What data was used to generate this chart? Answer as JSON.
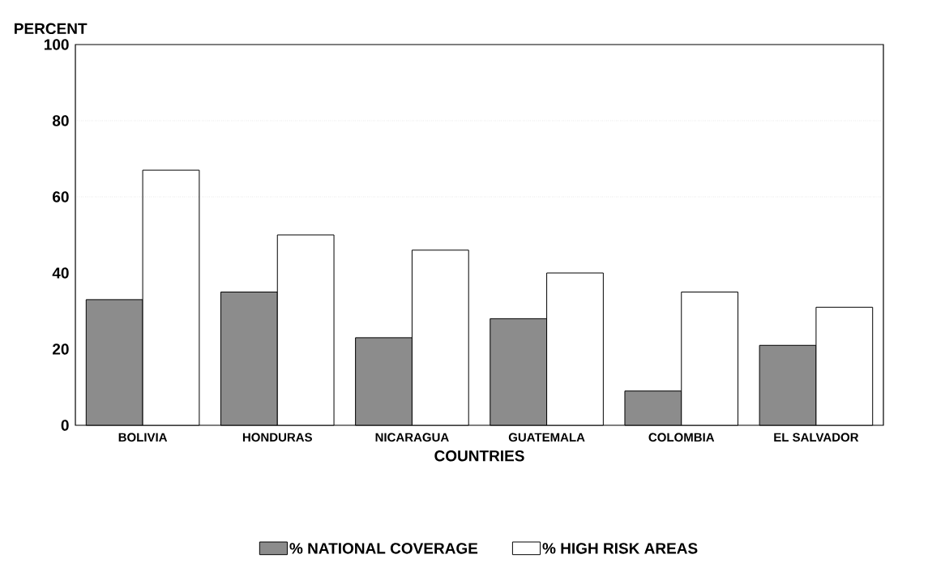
{
  "chart_data": {
    "type": "bar",
    "ylabel": "PERCENT",
    "xlabel": "COUNTRIES",
    "categories": [
      "BOLIVIA",
      "HONDURAS",
      "NICARAGUA",
      "GUATEMALA",
      "COLOMBIA",
      "EL SALVADOR"
    ],
    "series": [
      {
        "name": "% NATIONAL COVERAGE",
        "color": "#8c8c8c",
        "values": [
          33,
          35,
          23,
          28,
          9,
          21
        ]
      },
      {
        "name": "% HIGH RISK AREAS",
        "color": "#ffffff",
        "values": [
          67,
          50,
          46,
          40,
          35,
          31
        ]
      }
    ],
    "ylim": [
      0,
      100
    ],
    "yticks": [
      0,
      20,
      40,
      60,
      80,
      100
    ],
    "ref_lines": [
      {
        "axis": "y",
        "value": 60,
        "line_style": "dotted"
      },
      {
        "axis": "y",
        "value": 80,
        "line_style": "dotted"
      }
    ],
    "legend": "bottom"
  }
}
